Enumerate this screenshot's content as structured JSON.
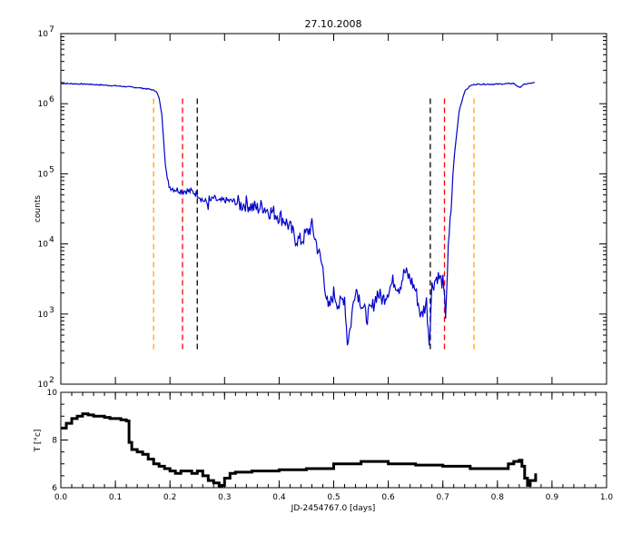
{
  "chart_data": [
    {
      "type": "line",
      "title": "27.10.2008",
      "ylabel": "counts",
      "y_scale": "log",
      "ylim": [
        100,
        10000000
      ],
      "xlim": [
        0.0,
        1.0
      ],
      "y_ticks": [
        {
          "value": 100,
          "base": "10",
          "exp": "2"
        },
        {
          "value": 1000,
          "base": "10",
          "exp": "3"
        },
        {
          "value": 10000,
          "base": "10",
          "exp": "4"
        },
        {
          "value": 100000,
          "base": "10",
          "exp": "5"
        },
        {
          "value": 1000000,
          "base": "10",
          "exp": "6"
        },
        {
          "value": 10000000,
          "base": "10",
          "exp": "7"
        }
      ],
      "series": [
        {
          "color": "#0000cc",
          "x": [
            0.0,
            0.05,
            0.1,
            0.14,
            0.165,
            0.175,
            0.18,
            0.185,
            0.19,
            0.195,
            0.2,
            0.21,
            0.22,
            0.24,
            0.25,
            0.26,
            0.27,
            0.28,
            0.29,
            0.3,
            0.31,
            0.32,
            0.33,
            0.34,
            0.35,
            0.36,
            0.37,
            0.38,
            0.39,
            0.4,
            0.41,
            0.42,
            0.43,
            0.44,
            0.45,
            0.46,
            0.47,
            0.48,
            0.49,
            0.5,
            0.51,
            0.52,
            0.525,
            0.53,
            0.54,
            0.55,
            0.56,
            0.57,
            0.58,
            0.59,
            0.6,
            0.61,
            0.62,
            0.63,
            0.64,
            0.65,
            0.66,
            0.67,
            0.675,
            0.68,
            0.69,
            0.7,
            0.705,
            0.71,
            0.715,
            0.72,
            0.73,
            0.74,
            0.75,
            0.76,
            0.8,
            0.83,
            0.84,
            0.85,
            0.87
          ],
          "y": [
            1950000,
            1900000,
            1800000,
            1700000,
            1600000,
            1500000,
            1200000,
            700000,
            200000,
            80000,
            65000,
            60000,
            58000,
            56000,
            52000,
            42000,
            38000,
            45000,
            40000,
            42000,
            41000,
            40000,
            36000,
            38000,
            34000,
            32000,
            35000,
            30000,
            28000,
            25000,
            22000,
            17000,
            12000,
            11000,
            14000,
            18000,
            9000,
            4500,
            1100,
            2000,
            1300,
            1800,
            400,
            600,
            2500,
            1500,
            900,
            1200,
            2000,
            1600,
            2200,
            3000,
            2400,
            4000,
            3200,
            2200,
            900,
            1500,
            400,
            2500,
            3500,
            2800,
            1000,
            8000,
            30000,
            150000,
            800000,
            1500000,
            1800000,
            1900000,
            1900000,
            1950000,
            1700000,
            1900000,
            2000000
          ]
        }
      ],
      "vlines": [
        {
          "x": 0.17,
          "color": "#ffa500"
        },
        {
          "x": 0.223,
          "color": "#ff0000"
        },
        {
          "x": 0.25,
          "color": "#000000"
        },
        {
          "x": 0.677,
          "color": "#000000"
        },
        {
          "x": 0.703,
          "color": "#ff0000"
        },
        {
          "x": 0.757,
          "color": "#ffa500"
        }
      ]
    },
    {
      "type": "line",
      "xlabel": "JD-2454767.0 [days]",
      "ylabel": "T [°c]",
      "xlim": [
        0.0,
        1.0
      ],
      "ylim": [
        6,
        10
      ],
      "x_ticks": [
        "0.0",
        "0.1",
        "0.2",
        "0.3",
        "0.4",
        "0.5",
        "0.6",
        "0.7",
        "0.8",
        "0.9",
        "1.0"
      ],
      "y_ticks": [
        "6",
        "8",
        "10"
      ],
      "series": [
        {
          "color": "#000000",
          "x": [
            0.0,
            0.01,
            0.02,
            0.03,
            0.04,
            0.05,
            0.06,
            0.07,
            0.08,
            0.09,
            0.1,
            0.11,
            0.12,
            0.125,
            0.13,
            0.14,
            0.15,
            0.16,
            0.17,
            0.18,
            0.19,
            0.2,
            0.21,
            0.22,
            0.23,
            0.24,
            0.25,
            0.26,
            0.27,
            0.28,
            0.29,
            0.295,
            0.3,
            0.31,
            0.32,
            0.35,
            0.4,
            0.45,
            0.5,
            0.55,
            0.6,
            0.65,
            0.7,
            0.75,
            0.8,
            0.82,
            0.83,
            0.84,
            0.845,
            0.85,
            0.855,
            0.86,
            0.87
          ],
          "y": [
            8.5,
            8.7,
            8.9,
            9.0,
            9.1,
            9.05,
            9.0,
            9.0,
            8.95,
            8.9,
            8.9,
            8.85,
            8.8,
            7.9,
            7.6,
            7.5,
            7.4,
            7.2,
            7.0,
            6.9,
            6.8,
            6.7,
            6.6,
            6.7,
            6.7,
            6.6,
            6.7,
            6.5,
            6.3,
            6.2,
            6.05,
            6.1,
            6.4,
            6.6,
            6.65,
            6.7,
            6.75,
            6.8,
            7.0,
            7.1,
            7.0,
            6.95,
            6.9,
            6.8,
            6.8,
            7.0,
            7.1,
            7.15,
            6.9,
            6.4,
            6.1,
            6.3,
            6.6
          ]
        }
      ]
    }
  ]
}
